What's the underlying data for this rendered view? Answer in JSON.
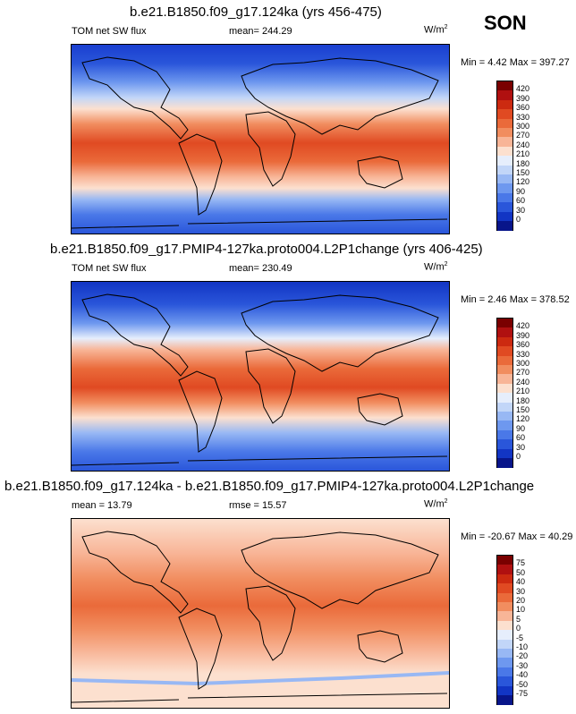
{
  "season": "SON",
  "panels": [
    {
      "title": "b.e21.B1850.f09_g17.124ka (yrs 456-475)",
      "left_label": "TOM net SW flux",
      "center_label": "mean= 244.29",
      "units_base": "W/m",
      "units_exp": "2",
      "minmax": "Min =   4.42 Max = 397.27",
      "colorbar": {
        "levels": [
          "420",
          "390",
          "360",
          "330",
          "300",
          "270",
          "240",
          "210",
          "180",
          "150",
          "120",
          "90",
          "60",
          "30",
          "0"
        ],
        "colors": [
          "#7a0000",
          "#b01010",
          "#cc2a10",
          "#e04a22",
          "#ea6a3a",
          "#f18d5f",
          "#f8b597",
          "#fce0cf",
          "#e6eefc",
          "#c2d6f8",
          "#98b8f4",
          "#6e98ef",
          "#4a78e8",
          "#2a56da",
          "#1235c4",
          "#08158a"
        ]
      }
    },
    {
      "title": "b.e21.B1850.f09_g17.PMIP4-127ka.proto004.L2P1change (yrs 406-425)",
      "left_label": "TOM net SW flux",
      "center_label": "mean= 230.49",
      "units_base": "W/m",
      "units_exp": "2",
      "minmax": "Min =   2.46 Max = 378.52",
      "colorbar": {
        "levels": [
          "420",
          "390",
          "360",
          "330",
          "300",
          "270",
          "240",
          "210",
          "180",
          "150",
          "120",
          "90",
          "60",
          "30",
          "0"
        ],
        "colors": [
          "#7a0000",
          "#b01010",
          "#cc2a10",
          "#e04a22",
          "#ea6a3a",
          "#f18d5f",
          "#f8b597",
          "#fce0cf",
          "#e6eefc",
          "#c2d6f8",
          "#98b8f4",
          "#6e98ef",
          "#4a78e8",
          "#2a56da",
          "#1235c4",
          "#08158a"
        ]
      }
    },
    {
      "title": "b.e21.B1850.f09_g17.124ka - b.e21.B1850.f09_g17.PMIP4-127ka.proto004.L2P1change",
      "left_label": "mean =  13.79",
      "center_label": "rmse =  15.57",
      "units_base": "W/m",
      "units_exp": "2",
      "minmax": "Min = -20.67 Max = 40.29",
      "colorbar": {
        "levels": [
          "75",
          "50",
          "40",
          "30",
          "20",
          "10",
          "5",
          "0",
          "-5",
          "-10",
          "-20",
          "-30",
          "-40",
          "-50",
          "-75"
        ],
        "colors": [
          "#7a0000",
          "#b01010",
          "#cc2a10",
          "#e04a22",
          "#ea6a3a",
          "#f18d5f",
          "#f8b597",
          "#fce0cf",
          "#e6eefc",
          "#c2d6f8",
          "#98b8f4",
          "#6e98ef",
          "#4a78e8",
          "#2a56da",
          "#1235c4",
          "#08158a"
        ]
      }
    }
  ],
  "chart_data": [
    {
      "type": "heatmap",
      "title": "b.e21.B1850.f09_g17.124ka (yrs 456-475)",
      "variable": "TOM net SW flux",
      "units": "W/m2",
      "mean": 244.29,
      "min": 4.42,
      "max": 397.27,
      "contour_levels": [
        0,
        30,
        60,
        90,
        120,
        150,
        180,
        210,
        240,
        270,
        300,
        330,
        360,
        390,
        420
      ]
    },
    {
      "type": "heatmap",
      "title": "b.e21.B1850.f09_g17.PMIP4-127ka.proto004.L2P1change (yrs 406-425)",
      "variable": "TOM net SW flux",
      "units": "W/m2",
      "mean": 230.49,
      "min": 2.46,
      "max": 378.52,
      "contour_levels": [
        0,
        30,
        60,
        90,
        120,
        150,
        180,
        210,
        240,
        270,
        300,
        330,
        360,
        390,
        420
      ]
    },
    {
      "type": "heatmap",
      "title": "b.e21.B1850.f09_g17.124ka - b.e21.B1850.f09_g17.PMIP4-127ka.proto004.L2P1change",
      "variable": "difference",
      "units": "W/m2",
      "mean": 13.79,
      "rmse": 15.57,
      "min": -20.67,
      "max": 40.29,
      "contour_levels": [
        -75,
        -50,
        -40,
        -30,
        -20,
        -10,
        -5,
        0,
        5,
        10,
        20,
        30,
        40,
        50,
        75
      ]
    }
  ]
}
